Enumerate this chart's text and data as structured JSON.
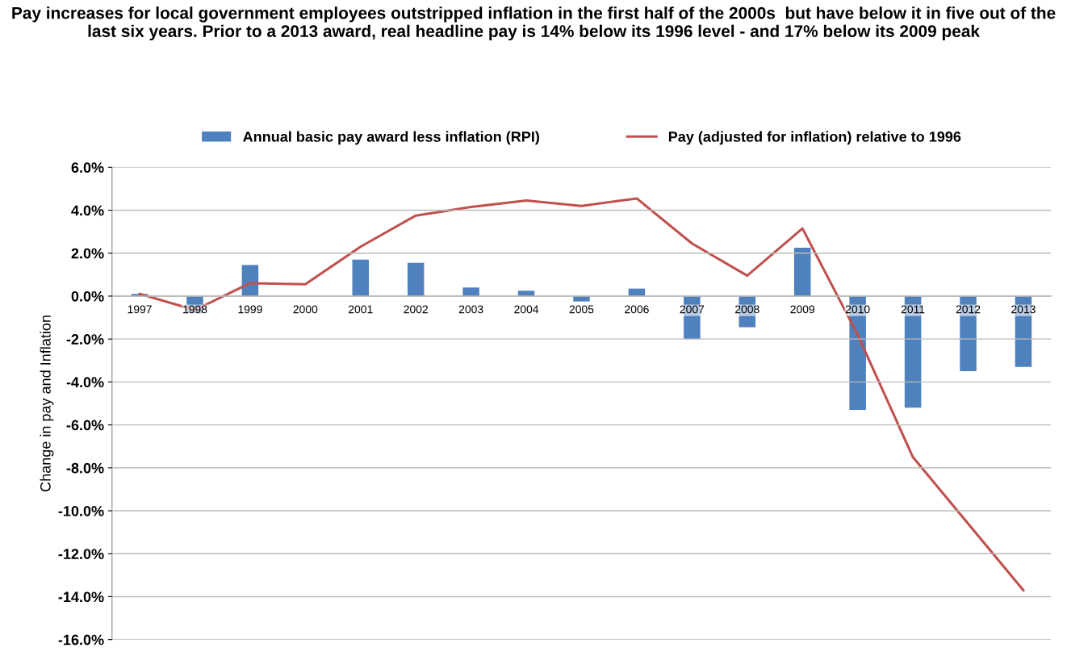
{
  "chart_data": {
    "type": "bar",
    "title": "Pay increases for local government employees outstripped inflation in the first half of the 2000s  but have below it in five out of the last six years. Prior to a 2013 award, real headline pay is 14% below its 1996 level - and 17% below its 2009 peak",
    "ylabel": "Change in pay and Inflation",
    "categories": [
      "1997",
      "1998",
      "1999",
      "2000",
      "2001",
      "2002",
      "2003",
      "2004",
      "2005",
      "2006",
      "2007",
      "2008",
      "2009",
      "2010",
      "2011",
      "2012",
      "2013"
    ],
    "series": [
      {
        "name": "Annual basic pay award less inflation (RPI)",
        "color": "#4f81bd",
        "values": [
          0.1,
          -0.8,
          1.45,
          0,
          1.7,
          1.55,
          0.4,
          0.25,
          -0.25,
          0.35,
          -2.0,
          -1.45,
          2.25,
          -5.3,
          -5.2,
          -3.5,
          -3.3
        ]
      },
      {
        "name": "Pay (adjusted for inflation) relative to 1996",
        "type": "line",
        "color": "#c0504d",
        "values": [
          0.1,
          -0.65,
          0.6,
          0.55,
          2.3,
          3.75,
          4.15,
          4.45,
          4.2,
          4.55,
          2.45,
          0.95,
          3.15,
          -1.8,
          -7.5,
          -10.6,
          -13.7
        ]
      }
    ],
    "ylim": [
      -16,
      6
    ],
    "yticks": [
      {
        "value": -16,
        "label": "-16.0%"
      },
      {
        "value": -14,
        "label": "-14.0%"
      },
      {
        "value": -12,
        "label": "-12.0%"
      },
      {
        "value": -10,
        "label": "-10.0%"
      },
      {
        "value": -8,
        "label": "-8.0%"
      },
      {
        "value": -6,
        "label": "-6.0%"
      },
      {
        "value": -4,
        "label": "-4.0%"
      },
      {
        "value": -2,
        "label": "-2.0%"
      },
      {
        "value": 0,
        "label": "0.0%"
      },
      {
        "value": 2,
        "label": "2.0%"
      },
      {
        "value": 4,
        "label": "4.0%"
      },
      {
        "value": 6,
        "label": "6.0%"
      }
    ],
    "grid": "y",
    "legend": "top",
    "marker": "none",
    "line_style": "solid"
  }
}
